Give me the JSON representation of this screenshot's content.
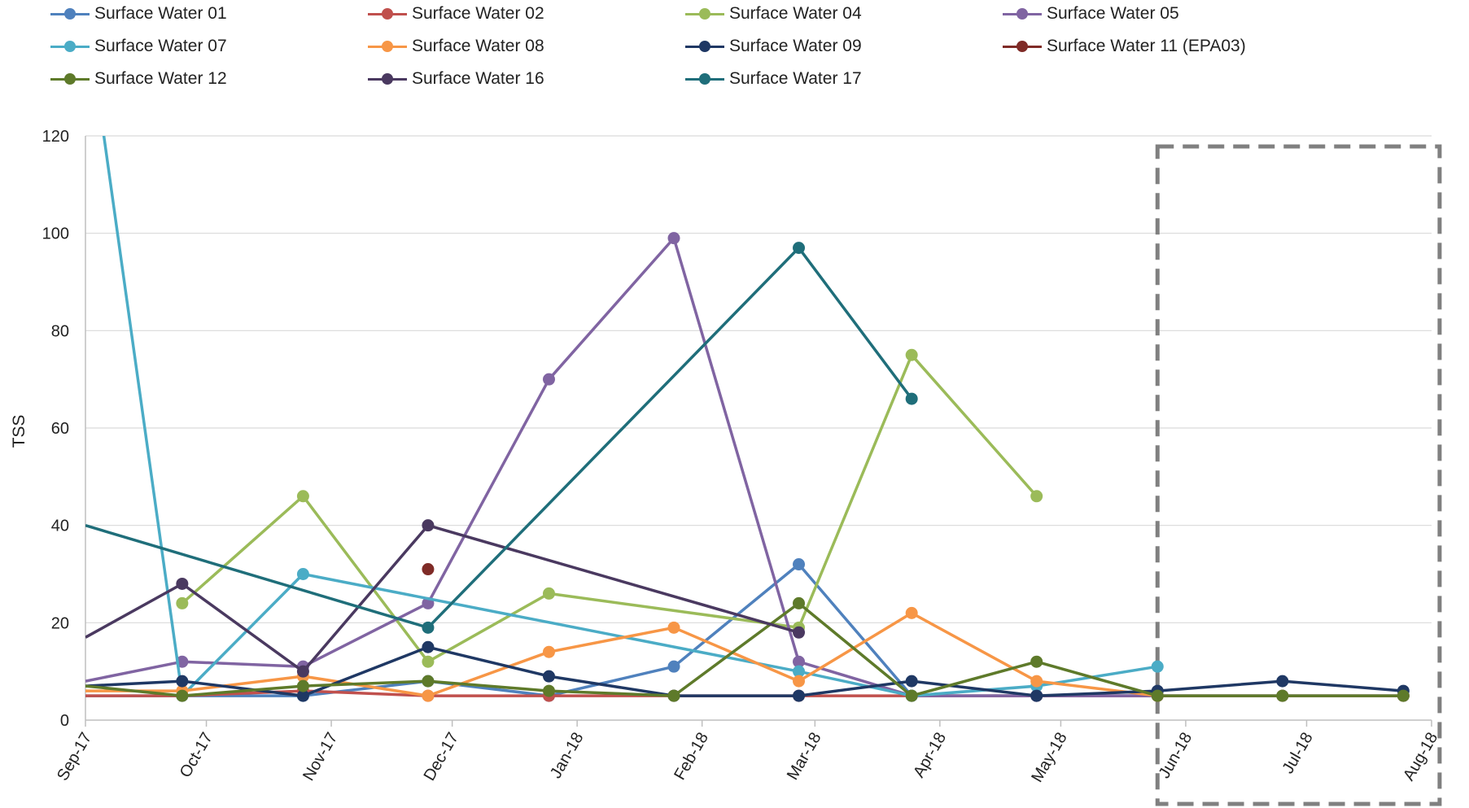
{
  "chart_data": {
    "type": "line",
    "title": "",
    "xlabel": "",
    "ylabel": "TSS",
    "ylim": [
      0,
      120
    ],
    "yticks": [
      0,
      20,
      40,
      60,
      80,
      100,
      120
    ],
    "xlim": [
      "2017-09-01",
      "2018-08-01"
    ],
    "xtick_labels": [
      "Sep-17",
      "Oct-17",
      "Nov-17",
      "Dec-17",
      "Jan-18",
      "Feb-18",
      "Mar-18",
      "Apr-18",
      "May-18",
      "Jun-18",
      "Jul-18",
      "Aug-18"
    ],
    "grid": "horizontal",
    "legend_position": "top",
    "highlight_box": {
      "x_start": "2018-05-25",
      "x_end": "2018-08-03",
      "style": "dashed",
      "color": "#808080"
    },
    "series": [
      {
        "name": "Surface Water 01",
        "color": "#4F81BD",
        "points": [
          [
            "2017-09-01",
            5
          ],
          [
            "2017-09-25",
            5
          ],
          [
            "2017-10-25",
            5
          ],
          [
            "2017-11-25",
            8
          ],
          [
            "2017-12-25",
            5
          ],
          [
            "2018-01-25",
            11
          ],
          [
            "2018-02-25",
            32
          ],
          [
            "2018-03-25",
            5
          ],
          [
            "2018-04-25",
            5
          ],
          [
            "2018-05-25",
            5
          ],
          [
            "2018-06-25",
            5
          ],
          [
            "2018-07-25",
            5
          ]
        ]
      },
      {
        "name": "Surface Water 02",
        "color": "#C0504D",
        "points": [
          [
            "2017-09-01",
            5
          ],
          [
            "2017-09-25",
            5
          ],
          [
            "2017-10-25",
            6
          ],
          [
            "2017-11-25",
            5
          ],
          [
            "2017-12-25",
            5
          ],
          [
            "2018-01-25",
            5
          ],
          [
            "2018-02-25",
            5
          ],
          [
            "2018-03-25",
            5
          ],
          [
            "2018-04-25",
            5
          ],
          [
            "2018-05-25",
            5
          ],
          [
            "2018-06-25",
            5
          ],
          [
            "2018-07-25",
            5
          ]
        ]
      },
      {
        "name": "Surface Water 04",
        "color": "#9BBB59",
        "points": [
          [
            "2017-09-25",
            24
          ],
          [
            "2017-10-25",
            46
          ],
          [
            "2017-11-25",
            12
          ],
          [
            "2017-12-25",
            26
          ],
          [
            "2018-02-25",
            19
          ],
          [
            "2018-03-25",
            75
          ],
          [
            "2018-04-25",
            46
          ]
        ]
      },
      {
        "name": "Surface Water 05",
        "color": "#8064A2",
        "points": [
          [
            "2017-09-01",
            8
          ],
          [
            "2017-09-25",
            12
          ],
          [
            "2017-10-25",
            11
          ],
          [
            "2017-11-25",
            24
          ],
          [
            "2017-12-25",
            70
          ],
          [
            "2018-01-25",
            99
          ],
          [
            "2018-02-25",
            12
          ],
          [
            "2018-03-25",
            5
          ],
          [
            "2018-04-25",
            5
          ],
          [
            "2018-05-25",
            5
          ]
        ]
      },
      {
        "name": "Surface Water 07",
        "color": "#4BACC6",
        "points": [
          [
            "2017-09-01",
            147
          ],
          [
            "2017-09-25",
            5
          ],
          [
            "2017-10-25",
            30
          ],
          [
            "2018-02-25",
            10
          ],
          [
            "2018-03-25",
            5
          ],
          [
            "2018-04-25",
            7
          ],
          [
            "2018-05-25",
            11
          ]
        ]
      },
      {
        "name": "Surface Water 08",
        "color": "#F79646",
        "points": [
          [
            "2017-09-01",
            6
          ],
          [
            "2017-09-25",
            6
          ],
          [
            "2017-10-25",
            9
          ],
          [
            "2017-11-25",
            5
          ],
          [
            "2017-12-25",
            14
          ],
          [
            "2018-01-25",
            19
          ],
          [
            "2018-02-25",
            8
          ],
          [
            "2018-03-25",
            22
          ],
          [
            "2018-04-25",
            8
          ],
          [
            "2018-05-25",
            5
          ]
        ]
      },
      {
        "name": "Surface Water 09",
        "color": "#1F3864",
        "points": [
          [
            "2017-09-01",
            7
          ],
          [
            "2017-09-25",
            8
          ],
          [
            "2017-10-25",
            5
          ],
          [
            "2017-11-25",
            15
          ],
          [
            "2017-12-25",
            9
          ],
          [
            "2018-01-25",
            5
          ],
          [
            "2018-02-25",
            5
          ],
          [
            "2018-03-25",
            8
          ],
          [
            "2018-04-25",
            5
          ],
          [
            "2018-05-25",
            6
          ],
          [
            "2018-06-25",
            8
          ],
          [
            "2018-07-25",
            6
          ]
        ]
      },
      {
        "name": "Surface Water 11 (EPA03)",
        "color": "#7F2B27",
        "points": [
          [
            "2017-11-25",
            31
          ]
        ]
      },
      {
        "name": "Surface Water 12",
        "color": "#5E7A2A",
        "points": [
          [
            "2017-09-01",
            7
          ],
          [
            "2017-09-25",
            5
          ],
          [
            "2017-10-25",
            7
          ],
          [
            "2017-11-25",
            8
          ],
          [
            "2017-12-25",
            6
          ],
          [
            "2018-01-25",
            5
          ],
          [
            "2018-02-25",
            24
          ],
          [
            "2018-03-25",
            5
          ],
          [
            "2018-04-25",
            12
          ],
          [
            "2018-05-25",
            5
          ],
          [
            "2018-06-25",
            5
          ],
          [
            "2018-07-25",
            5
          ]
        ]
      },
      {
        "name": "Surface Water 16",
        "color": "#4A3960",
        "points": [
          [
            "2017-09-01",
            17
          ],
          [
            "2017-09-25",
            28
          ],
          [
            "2017-10-25",
            10
          ],
          [
            "2017-11-25",
            40
          ],
          [
            "2018-02-25",
            18
          ]
        ]
      },
      {
        "name": "Surface Water 17",
        "color": "#1F6E7A",
        "points": [
          [
            "2017-09-01",
            40
          ],
          [
            "2017-11-25",
            19
          ],
          [
            "2018-02-25",
            97
          ],
          [
            "2018-03-25",
            66
          ]
        ]
      }
    ]
  }
}
